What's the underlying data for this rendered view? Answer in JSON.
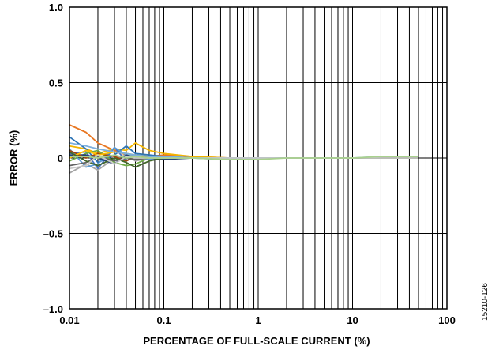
{
  "figure_id": "15210-126",
  "chart_data": {
    "type": "line",
    "title": "",
    "xlabel": "PERCENTAGE OF FULL-SCALE CURRENT (%)",
    "ylabel": "ERROR (%)",
    "x_scale": "log",
    "xlim": [
      0.01,
      100
    ],
    "ylim": [
      -1.0,
      1.0
    ],
    "grid": true,
    "legend": "none",
    "x_ticks": [
      {
        "value": 0.01,
        "label": "0.01"
      },
      {
        "value": 0.1,
        "label": "0.1"
      },
      {
        "value": 1,
        "label": "1"
      },
      {
        "value": 10,
        "label": "10"
      },
      {
        "value": 100,
        "label": "100"
      }
    ],
    "y_ticks": [
      {
        "value": 1.0,
        "label": "1.0"
      },
      {
        "value": 0.5,
        "label": "0.5"
      },
      {
        "value": 0,
        "label": "0"
      },
      {
        "value": -0.5,
        "label": "–0.5"
      },
      {
        "value": -1.0,
        "label": "–1.0"
      }
    ],
    "x": [
      0.01,
      0.015,
      0.02,
      0.03,
      0.04,
      0.05,
      0.07,
      0.1,
      0.2,
      0.5,
      1,
      2,
      5,
      10,
      20,
      50
    ],
    "series": [
      {
        "color": "#e87722",
        "values": [
          0.22,
          0.17,
          0.1,
          0.05,
          0.02,
          0.0,
          0.01,
          0.02,
          0.01,
          0.0,
          0.0,
          0.0,
          0.0,
          0.0,
          0.0,
          0.0
        ]
      },
      {
        "color": "#f2b400",
        "values": [
          0.08,
          0.06,
          0.03,
          0.06,
          0.05,
          0.1,
          0.05,
          0.03,
          0.01,
          0.0,
          0.0,
          0.0,
          0.0,
          0.0,
          0.0,
          0.0
        ]
      },
      {
        "color": "#2e75b6",
        "values": [
          0.14,
          0.06,
          -0.03,
          0.02,
          0.08,
          0.03,
          0.02,
          0.01,
          0.0,
          0.0,
          0.0,
          0.0,
          0.0,
          0.0,
          0.0,
          0.0
        ]
      },
      {
        "color": "#4472c4",
        "values": [
          0.03,
          0.04,
          -0.07,
          0.07,
          -0.02,
          0.02,
          0.01,
          0.0,
          0.0,
          -0.01,
          0.0,
          0.0,
          0.0,
          0.0,
          0.0,
          0.0
        ]
      },
      {
        "color": "#70ad47",
        "values": [
          -0.02,
          0.03,
          0.05,
          -0.03,
          -0.05,
          -0.04,
          0.0,
          0.01,
          0.0,
          0.0,
          0.0,
          0.0,
          0.0,
          0.0,
          0.0,
          0.0
        ]
      },
      {
        "color": "#a5a5a5",
        "values": [
          -0.1,
          -0.04,
          -0.08,
          0.0,
          0.02,
          -0.02,
          0.0,
          0.0,
          0.0,
          0.0,
          0.0,
          0.0,
          0.0,
          0.0,
          0.0,
          0.0
        ]
      },
      {
        "color": "#5b9bd5",
        "values": [
          0.06,
          -0.06,
          -0.04,
          0.07,
          0.02,
          0.01,
          -0.01,
          0.01,
          0.0,
          0.0,
          0.0,
          0.0,
          0.0,
          0.0,
          0.0,
          0.0
        ]
      },
      {
        "color": "#264478",
        "values": [
          0.02,
          0.02,
          0.0,
          -0.04,
          0.02,
          0.0,
          0.0,
          -0.01,
          0.0,
          0.0,
          0.0,
          0.0,
          0.0,
          0.0,
          0.0,
          0.0
        ]
      },
      {
        "color": "#9e480e",
        "values": [
          0.05,
          0.0,
          0.03,
          0.01,
          -0.02,
          0.01,
          0.0,
          0.0,
          0.0,
          0.0,
          0.0,
          0.0,
          0.0,
          0.0,
          0.0,
          0.0
        ]
      },
      {
        "color": "#ffc000",
        "values": [
          0.0,
          0.05,
          0.02,
          0.04,
          0.03,
          0.02,
          0.01,
          0.0,
          0.0,
          0.0,
          0.0,
          0.0,
          0.0,
          0.0,
          0.0,
          0.0
        ]
      },
      {
        "color": "#636363",
        "values": [
          -0.05,
          -0.03,
          0.01,
          -0.02,
          0.0,
          -0.01,
          0.0,
          0.0,
          0.0,
          0.0,
          0.0,
          0.0,
          0.0,
          0.0,
          0.0,
          0.0
        ]
      },
      {
        "color": "#43682b",
        "values": [
          0.04,
          -0.02,
          -0.05,
          0.0,
          -0.03,
          -0.06,
          -0.02,
          0.0,
          0.0,
          0.0,
          0.0,
          0.0,
          0.0,
          0.0,
          0.0,
          0.0
        ]
      },
      {
        "color": "#7cafdd",
        "values": [
          0.1,
          0.08,
          0.06,
          0.04,
          0.03,
          0.02,
          0.01,
          0.01,
          0.0,
          0.0,
          0.0,
          0.0,
          0.0,
          0.0,
          0.01,
          0.01
        ]
      },
      {
        "color": "#c9c9c9",
        "values": [
          -0.07,
          -0.05,
          0.02,
          -0.04,
          0.01,
          0.0,
          0.0,
          0.0,
          0.0,
          0.0,
          0.0,
          0.0,
          0.0,
          0.0,
          0.0,
          0.0
        ]
      },
      {
        "color": "#a9d18e",
        "values": [
          0.01,
          0.01,
          0.0,
          0.02,
          0.0,
          0.01,
          0.0,
          0.0,
          0.0,
          -0.01,
          -0.01,
          0.0,
          0.0,
          0.0,
          0.01,
          0.01
        ]
      }
    ]
  }
}
